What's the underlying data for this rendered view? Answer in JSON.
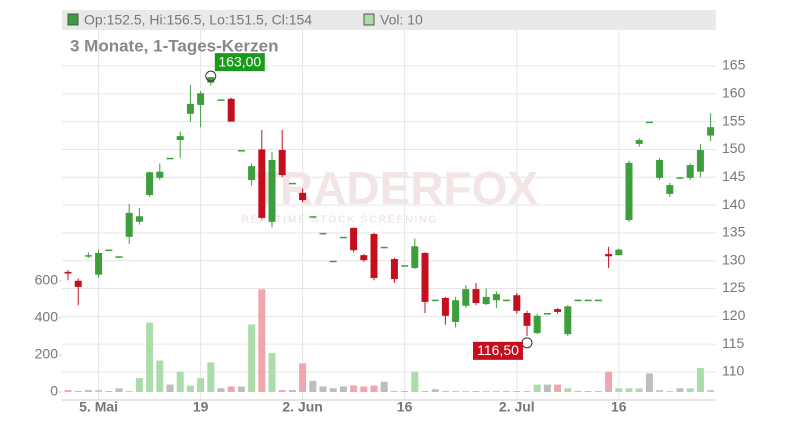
{
  "chart_data": {
    "type": "candlestick",
    "header": {
      "ohlc": "Op:152.5, Hi:156.5, Lo:151.5, Cl:154",
      "volume": "Vol: 10"
    },
    "title": "3 Monate, 1-Tages-Kerzen",
    "watermark": {
      "brand": "TRADERFOX",
      "tagline": "REALTIME STOCK SCREENING"
    },
    "categories": [
      null,
      null,
      null,
      "5. Mai",
      null,
      null,
      null,
      null,
      null,
      null,
      null,
      null,
      null,
      "19",
      null,
      null,
      null,
      null,
      null,
      null,
      null,
      null,
      null,
      "2. Jun",
      null,
      null,
      null,
      null,
      null,
      null,
      null,
      null,
      null,
      "16",
      null,
      null,
      null,
      null,
      null,
      null,
      null,
      null,
      null,
      null,
      "2. Jul",
      null,
      null,
      null,
      null,
      null,
      null,
      null,
      null,
      null,
      "16",
      null,
      null,
      null,
      null,
      null,
      null,
      null,
      null,
      null
    ],
    "open": [
      128,
      126.4,
      131,
      127.5,
      132,
      130.8,
      134.3,
      137,
      141.8,
      144.9,
      148.5,
      151.7,
      156.4,
      158,
      162,
      159,
      159.1,
      149.9,
      144.5,
      150,
      137,
      149.9,
      144,
      142.2,
      138,
      135,
      130,
      134.3,
      135.9,
      131,
      134.8,
      132.5,
      130.3,
      129.2,
      128.7,
      131.4,
      123,
      123.3,
      119,
      121.9,
      124.9,
      122.2,
      122.9,
      123,
      123.8,
      120.6,
      117,
      120.6,
      121.3,
      116.8,
      123,
      123,
      123,
      131.2,
      131,
      137.3,
      151,
      155,
      144.9,
      142,
      145,
      144.9,
      146,
      152.5
    ],
    "high": [
      128.3,
      126.8,
      131.5,
      132,
      132,
      130.8,
      140.2,
      139.5,
      146,
      147.5,
      148.5,
      153.2,
      161.6,
      160.5,
      163,
      159,
      159.3,
      149.9,
      147.5,
      153.5,
      149.5,
      153.5,
      144,
      143,
      138,
      135,
      130,
      134.3,
      136,
      131.2,
      135,
      132.5,
      130.5,
      129.2,
      134,
      131.5,
      123,
      123.5,
      123.5,
      125.6,
      126,
      125,
      124.5,
      123,
      124.2,
      121,
      120.5,
      120.6,
      121.5,
      122,
      123,
      123,
      123,
      132.5,
      132.2,
      148,
      152,
      155,
      148.5,
      144,
      145,
      147.5,
      151,
      156.5
    ],
    "low": [
      126.5,
      122,
      130.5,
      127,
      132,
      130.8,
      133,
      136.5,
      141.5,
      144.5,
      148.5,
      148.5,
      155,
      154,
      161.5,
      159,
      155,
      149.9,
      143.5,
      137.5,
      136,
      145,
      144,
      140.5,
      138,
      135,
      130,
      134.3,
      131.5,
      129.8,
      126.5,
      132.5,
      126,
      129.2,
      128.5,
      120.6,
      123,
      118.5,
      118,
      121.5,
      122,
      122,
      121.5,
      123,
      120.5,
      116.5,
      116.8,
      120.6,
      120.5,
      116.5,
      123,
      123,
      123,
      128.7,
      131,
      137,
      150.5,
      155,
      144.5,
      141.5,
      145,
      144.5,
      145,
      151.5
    ],
    "close": [
      127.7,
      125.3,
      131,
      131.4,
      132,
      130.8,
      138.6,
      138,
      145.9,
      146,
      148.5,
      152.4,
      158.2,
      160.1,
      163,
      159,
      155,
      149.9,
      147,
      137.7,
      148.1,
      145.4,
      144,
      140.9,
      138,
      135,
      130,
      134.3,
      131.9,
      130.1,
      126.9,
      132.5,
      126.7,
      129.2,
      132.6,
      122.6,
      123,
      120.1,
      122.9,
      124.9,
      122.4,
      123.5,
      124,
      123,
      121,
      118.3,
      120.1,
      120.6,
      120.8,
      121.8,
      123,
      123,
      123,
      130.8,
      132,
      147.6,
      151.7,
      155,
      148.1,
      143.6,
      145,
      147.2,
      149.9,
      154
    ],
    "volume": [
      10,
      5,
      10,
      10,
      5,
      20,
      5,
      75,
      375,
      170,
      40,
      110,
      35,
      75,
      160,
      20,
      30,
      30,
      365,
      555,
      210,
      10,
      10,
      155,
      60,
      30,
      20,
      30,
      35,
      30,
      35,
      55,
      5,
      5,
      110,
      5,
      15,
      5,
      5,
      5,
      5,
      5,
      5,
      5,
      5,
      5,
      40,
      40,
      40,
      20,
      5,
      5,
      5,
      110,
      20,
      20,
      20,
      100,
      10,
      5,
      20,
      20,
      130,
      10
    ],
    "up_color": "#3c9e3c",
    "down_color": "#c4101e",
    "volume_up_color": "#acdcac",
    "volume_down_color": "#f0a6ae",
    "volume_flat_color": "#bdbdbd",
    "ylim": [
      110,
      165
    ],
    "yticks": [
      110,
      115,
      120,
      125,
      130,
      135,
      140,
      145,
      150,
      155,
      160,
      165
    ],
    "vol_lim": [
      0,
      600
    ],
    "vol_ticks": [
      0,
      200,
      400,
      600
    ],
    "annotations": [
      {
        "label": "163,00",
        "value": 163,
        "color": "#1a9a1a"
      },
      {
        "label": "116,50",
        "value": 116.5,
        "color": "#c4101e"
      }
    ],
    "grid": true
  }
}
